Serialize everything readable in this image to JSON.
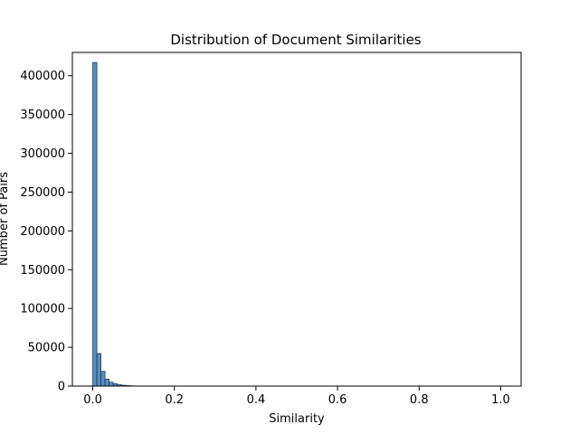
{
  "chart_data": {
    "type": "bar",
    "title": "Distribution of Document Similarities",
    "xlabel": "Similarity",
    "ylabel": "Number of Pairs",
    "xlim": [
      -0.05,
      1.05
    ],
    "ylim": [
      0,
      430000
    ],
    "xticks": [
      0.0,
      0.2,
      0.4,
      0.6,
      0.8,
      1.0
    ],
    "xtick_labels": [
      "0.0",
      "0.2",
      "0.4",
      "0.6",
      "0.8",
      "1.0"
    ],
    "yticks": [
      0,
      50000,
      100000,
      150000,
      200000,
      250000,
      300000,
      350000,
      400000
    ],
    "ytick_labels": [
      "0",
      "50000",
      "100000",
      "150000",
      "200000",
      "250000",
      "300000",
      "350000",
      "400000"
    ],
    "bin_width": 0.01,
    "bins": [
      {
        "x0": 0.0,
        "value": 417000
      },
      {
        "x0": 0.01,
        "value": 42000
      },
      {
        "x0": 0.02,
        "value": 19000
      },
      {
        "x0": 0.03,
        "value": 9000
      },
      {
        "x0": 0.04,
        "value": 5000
      },
      {
        "x0": 0.05,
        "value": 3000
      },
      {
        "x0": 0.06,
        "value": 1800
      },
      {
        "x0": 0.07,
        "value": 1100
      },
      {
        "x0": 0.08,
        "value": 600
      },
      {
        "x0": 0.09,
        "value": 350
      },
      {
        "x0": 0.1,
        "value": 200
      },
      {
        "x0": 0.11,
        "value": 120
      },
      {
        "x0": 0.12,
        "value": 80
      },
      {
        "x0": 0.13,
        "value": 50
      },
      {
        "x0": 0.14,
        "value": 30
      },
      {
        "x0": 0.15,
        "value": 20
      },
      {
        "x0": 0.99,
        "value": 50
      }
    ],
    "grid": false,
    "legend": "none"
  }
}
